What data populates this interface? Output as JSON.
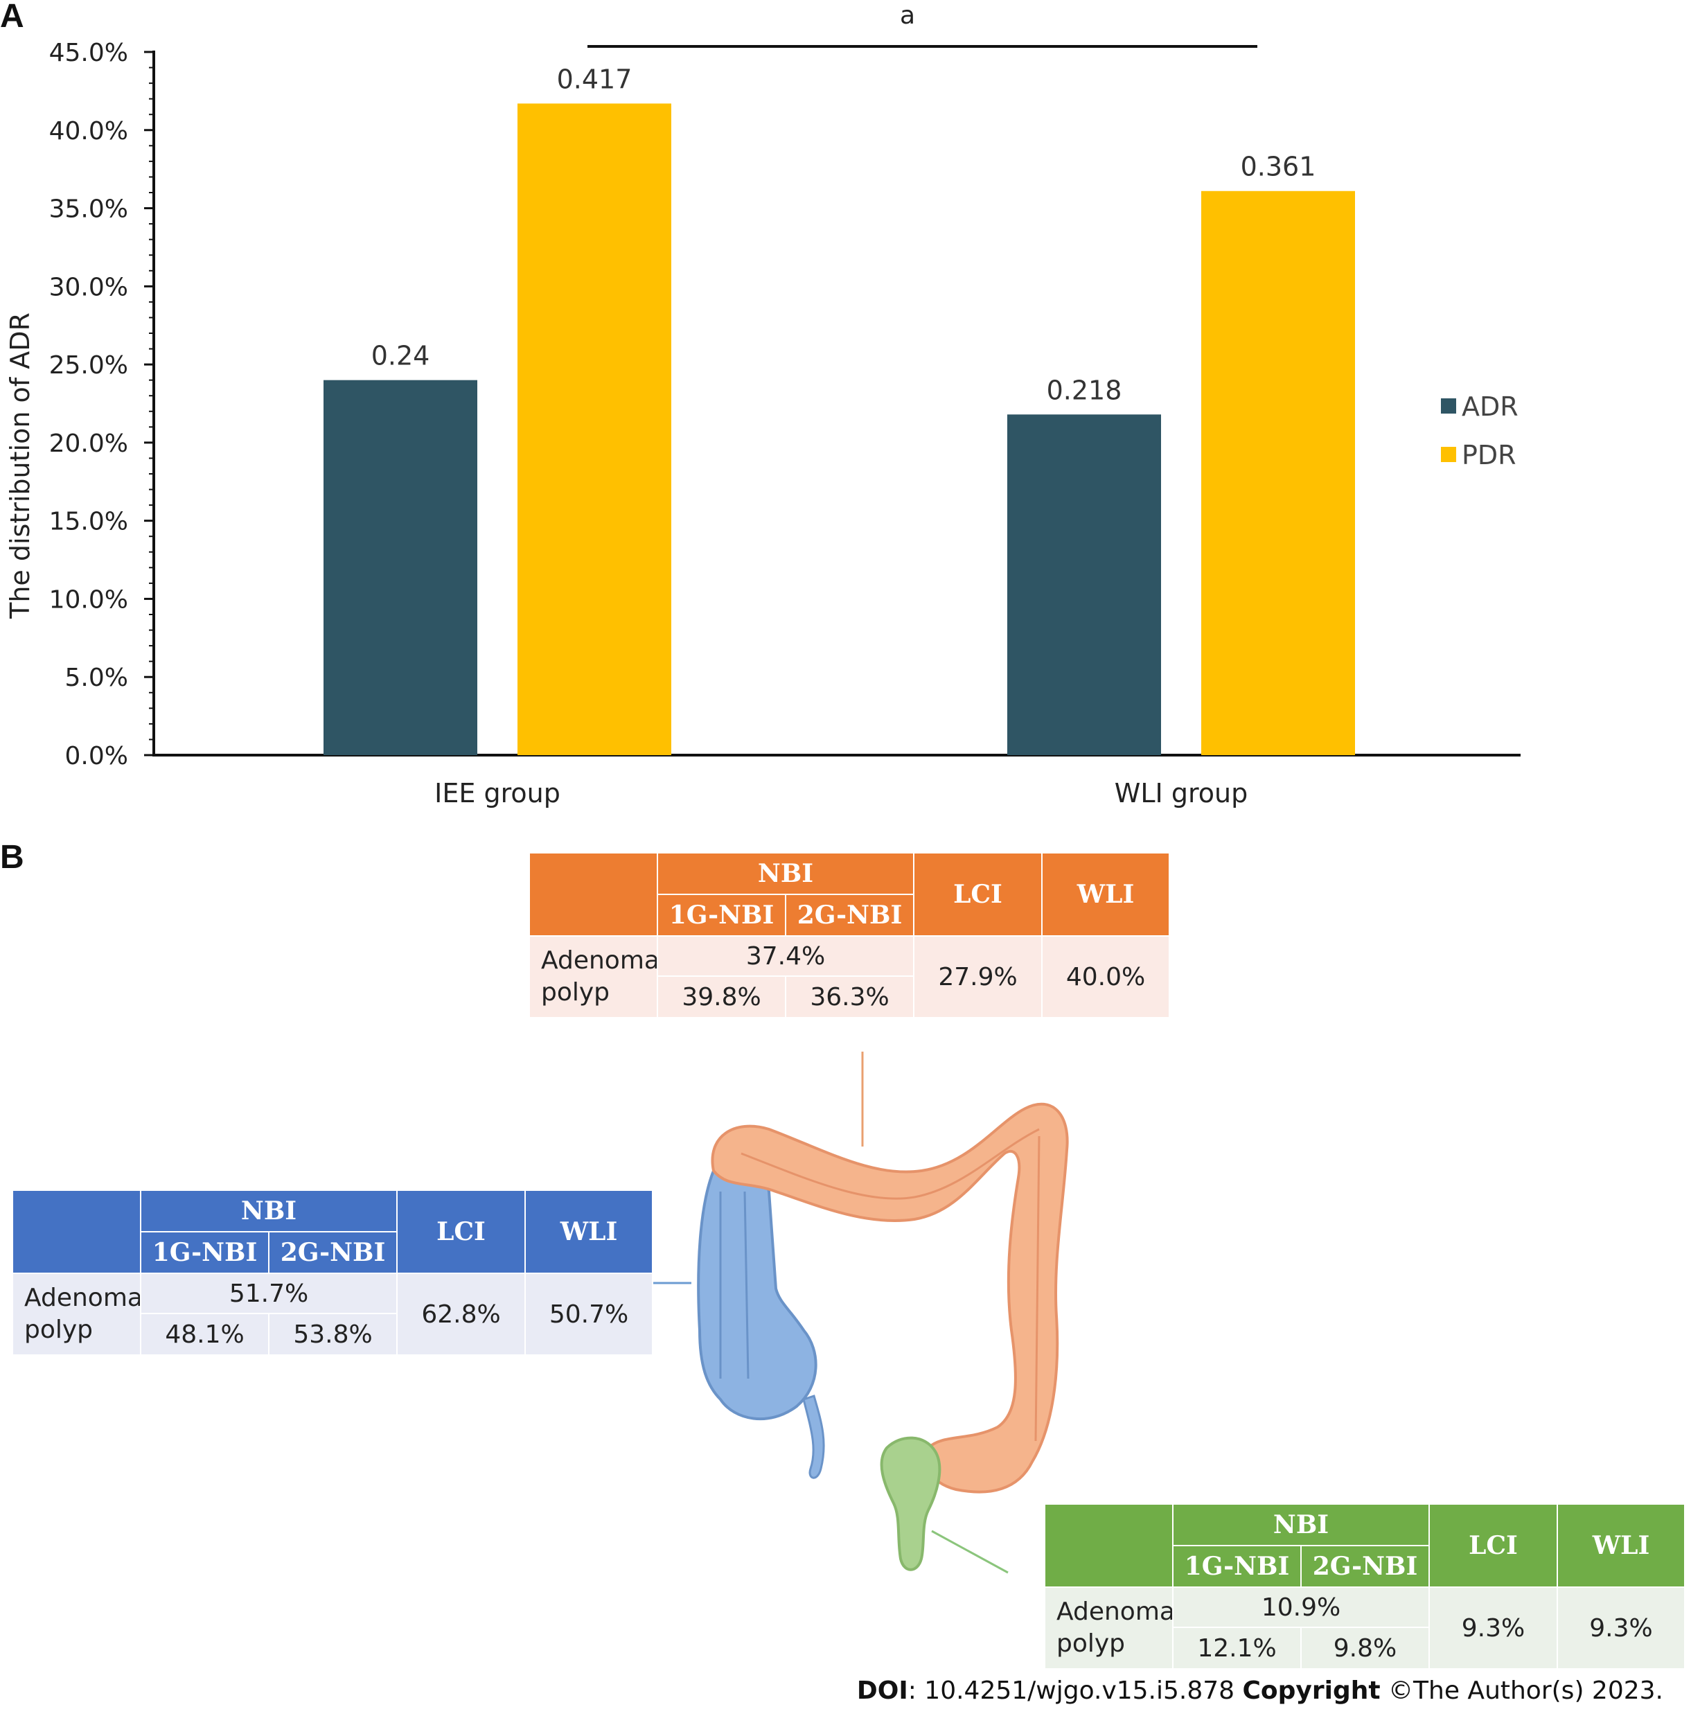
{
  "panels": {
    "a": "A",
    "b": "B"
  },
  "chart_data": {
    "type": "bar",
    "categories": [
      "IEE group",
      "WLI group"
    ],
    "series": [
      {
        "name": "ADR",
        "values": [
          0.24,
          0.218
        ],
        "labels": [
          "0.24",
          "0.218"
        ]
      },
      {
        "name": "PDR",
        "values": [
          0.417,
          0.361
        ],
        "labels": [
          "0.417",
          "0.361"
        ]
      }
    ],
    "ylabel": "The distribution of ADR",
    "xlabel": "",
    "ylim": [
      0,
      0.45
    ],
    "yticks": [
      "0.0%",
      "5.0%",
      "10.0%",
      "15.0%",
      "20.0%",
      "25.0%",
      "30.0%",
      "35.0%",
      "40.0%",
      "45.0%"
    ],
    "significance_label": "a",
    "legend_position": "right",
    "colors": {
      "ADR": "#2F5564",
      "PDR": "#FFC000"
    }
  },
  "tables": {
    "transverse": {
      "color": "#ED7D31",
      "nbi": "NBI",
      "g1": "1G-NBI",
      "g2": "2G-NBI",
      "lci": "LCI",
      "wli": "WLI",
      "row_label": "Adenoma polyp",
      "nbi_total": "37.4%",
      "g1_val": "39.8%",
      "g2_val": "36.3%",
      "lci_val": "27.9%",
      "wli_val": "40.0%"
    },
    "right_colon": {
      "color": "#4472C4",
      "nbi": "NBI",
      "g1": "1G-NBI",
      "g2": "2G-NBI",
      "lci": "LCI",
      "wli": "WLI",
      "row_label": "Adenoma polyp",
      "nbi_total": "51.7%",
      "g1_val": "48.1%",
      "g2_val": "53.8%",
      "lci_val": "62.8%",
      "wli_val": "50.7%"
    },
    "rectum": {
      "color": "#70AD47",
      "nbi": "NBI",
      "g1": "1G-NBI",
      "g2": "2G-NBI",
      "lci": "LCI",
      "wli": "WLI",
      "row_label": "Adenoma polyp",
      "nbi_total": "10.9%",
      "g1_val": "12.1%",
      "g2_val": "9.8%",
      "lci_val": "9.3%",
      "wli_val": "9.3%"
    }
  },
  "footer": {
    "doi_label": "DOI",
    "doi_value": ": 10.4251/wjgo.v15.i5.878 ",
    "copyright_label": "Copyright",
    "copyright_value": " ©The Author(s) 2023."
  }
}
